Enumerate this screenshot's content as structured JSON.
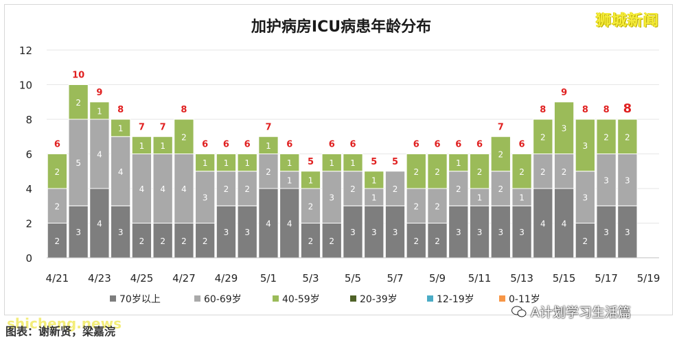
{
  "brand": "狮城新闻",
  "watermark": "shicheng.news",
  "footer_label": "图表：谢新贤，梁嘉浣",
  "wechat_account": "A计划学习生活篇",
  "colors": {
    "s70": "#7e7e7e",
    "s60": "#a9a9a9",
    "s40": "#9bbb59",
    "s20": "#4f6228",
    "s12": "#4bacc6",
    "s0": "#f79646",
    "total": "#e02020"
  },
  "chart_data": {
    "type": "bar",
    "stacked": true,
    "title": "加护病房ICU病患年龄分布",
    "categories": [
      "4/21",
      "4/22",
      "4/23",
      "4/24",
      "4/25",
      "4/26",
      "4/27",
      "4/28",
      "4/29",
      "4/30",
      "5/1",
      "5/2",
      "5/3",
      "5/4",
      "5/5",
      "5/6",
      "5/7",
      "5/8",
      "5/9",
      "5/10",
      "5/11",
      "5/12",
      "5/13",
      "5/14",
      "5/15",
      "5/16",
      "5/17",
      "5/18",
      "5/19"
    ],
    "tick_labels": [
      "4/21",
      "4/23",
      "4/25",
      "4/27",
      "4/29",
      "5/1",
      "5/3",
      "5/5",
      "5/7",
      "5/9",
      "5/11",
      "5/13",
      "5/15",
      "5/17",
      "5/19"
    ],
    "y_ticks": [
      "0",
      "2",
      "4",
      "6",
      "8",
      "10",
      "12"
    ],
    "ylim": [
      0,
      12
    ],
    "series": [
      {
        "name": "70岁以上",
        "values": [
          2,
          3,
          4,
          3,
          2,
          2,
          2,
          2,
          3,
          3,
          4,
          4,
          2,
          2,
          3,
          3,
          3,
          2,
          2,
          3,
          3,
          3,
          3,
          4,
          4,
          2,
          3,
          3,
          null
        ]
      },
      {
        "name": "60-69岁",
        "values": [
          2,
          5,
          4,
          4,
          4,
          4,
          4,
          3,
          2,
          2,
          2,
          1,
          2,
          3,
          2,
          1,
          2,
          2,
          2,
          2,
          1,
          2,
          1,
          2,
          2,
          3,
          3,
          3,
          null
        ]
      },
      {
        "name": "40-59岁",
        "values": [
          2,
          2,
          1,
          1,
          1,
          1,
          2,
          1,
          1,
          1,
          1,
          1,
          1,
          1,
          1,
          1,
          0,
          2,
          2,
          1,
          2,
          2,
          2,
          2,
          3,
          3,
          2,
          2,
          null
        ]
      },
      {
        "name": "20-39岁",
        "values": [
          0,
          0,
          0,
          0,
          0,
          0,
          0,
          0,
          0,
          0,
          0,
          0,
          0,
          0,
          0,
          0,
          0,
          0,
          0,
          0,
          0,
          0,
          0,
          0,
          0,
          0,
          0,
          0,
          null
        ]
      },
      {
        "name": "12-19岁",
        "values": [
          0,
          0,
          0,
          0,
          0,
          0,
          0,
          0,
          0,
          0,
          0,
          0,
          0,
          0,
          0,
          0,
          0,
          0,
          0,
          0,
          0,
          0,
          0,
          0,
          0,
          0,
          0,
          0,
          null
        ]
      },
      {
        "name": "0-11岁",
        "values": [
          0,
          0,
          0,
          0,
          0,
          0,
          0,
          0,
          0,
          0,
          0,
          0,
          0,
          0,
          0,
          0,
          0,
          0,
          0,
          0,
          0,
          0,
          0,
          0,
          0,
          0,
          0,
          0,
          null
        ]
      }
    ],
    "totals": [
      6,
      10,
      9,
      8,
      7,
      7,
      8,
      6,
      6,
      6,
      7,
      6,
      5,
      6,
      6,
      5,
      5,
      6,
      6,
      6,
      6,
      7,
      6,
      8,
      9,
      8,
      8,
      8,
      null
    ],
    "segment_labels_shown_for_zero": false,
    "legend_position": "bottom",
    "grid": true
  }
}
